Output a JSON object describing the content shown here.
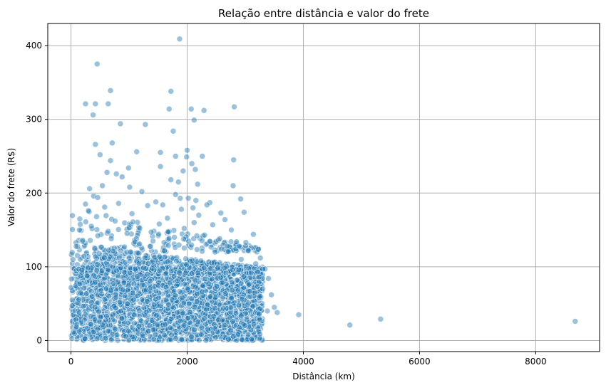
{
  "chart_data": {
    "type": "scatter",
    "title": "Relação entre distância e valor do frete",
    "xlabel": "Distância (km)",
    "ylabel": "Valor do frete (R$)",
    "xlim": [
      -400,
      9100
    ],
    "ylim": [
      -15,
      430
    ],
    "xticks": [
      0,
      2000,
      4000,
      6000,
      8000
    ],
    "xtick_labels": [
      "0",
      "2000",
      "4000",
      "6000",
      "8000"
    ],
    "yticks": [
      0,
      100,
      200,
      300,
      400
    ],
    "ytick_labels": [
      "0",
      "100",
      "200",
      "300",
      "400"
    ],
    "grid": true,
    "color": "#1f77b4",
    "points": [
      {
        "x": 1870,
        "y": 409
      },
      {
        "x": 450,
        "y": 375
      },
      {
        "x": 680,
        "y": 339
      },
      {
        "x": 1720,
        "y": 338
      },
      {
        "x": 250,
        "y": 321
      },
      {
        "x": 420,
        "y": 321
      },
      {
        "x": 640,
        "y": 321
      },
      {
        "x": 2810,
        "y": 317
      },
      {
        "x": 1690,
        "y": 314
      },
      {
        "x": 2070,
        "y": 314
      },
      {
        "x": 2290,
        "y": 312
      },
      {
        "x": 380,
        "y": 306
      },
      {
        "x": 2120,
        "y": 299
      },
      {
        "x": 850,
        "y": 294
      },
      {
        "x": 1280,
        "y": 293
      },
      {
        "x": 1760,
        "y": 284
      },
      {
        "x": 710,
        "y": 268
      },
      {
        "x": 420,
        "y": 266
      },
      {
        "x": 2000,
        "y": 258
      },
      {
        "x": 1130,
        "y": 256
      },
      {
        "x": 1540,
        "y": 255
      },
      {
        "x": 500,
        "y": 252
      },
      {
        "x": 1800,
        "y": 250
      },
      {
        "x": 2260,
        "y": 250
      },
      {
        "x": 1990,
        "y": 249
      },
      {
        "x": 2800,
        "y": 245
      },
      {
        "x": 680,
        "y": 244
      },
      {
        "x": 2080,
        "y": 240
      },
      {
        "x": 1540,
        "y": 236
      },
      {
        "x": 990,
        "y": 234
      },
      {
        "x": 2140,
        "y": 232
      },
      {
        "x": 1930,
        "y": 230
      },
      {
        "x": 620,
        "y": 228
      },
      {
        "x": 780,
        "y": 226
      },
      {
        "x": 880,
        "y": 222
      },
      {
        "x": 1720,
        "y": 218
      },
      {
        "x": 1850,
        "y": 215
      },
      {
        "x": 2180,
        "y": 212
      },
      {
        "x": 540,
        "y": 210
      },
      {
        "x": 2790,
        "y": 210
      },
      {
        "x": 1010,
        "y": 208
      },
      {
        "x": 320,
        "y": 206
      },
      {
        "x": 1220,
        "y": 202
      },
      {
        "x": 1800,
        "y": 198
      },
      {
        "x": 390,
        "y": 196
      },
      {
        "x": 460,
        "y": 194
      },
      {
        "x": 1880,
        "y": 193
      },
      {
        "x": 2020,
        "y": 193
      },
      {
        "x": 2920,
        "y": 192
      },
      {
        "x": 2150,
        "y": 190
      },
      {
        "x": 1460,
        "y": 188
      },
      {
        "x": 2390,
        "y": 187
      },
      {
        "x": 820,
        "y": 186
      },
      {
        "x": 250,
        "y": 185
      },
      {
        "x": 1580,
        "y": 184
      },
      {
        "x": 2340,
        "y": 184
      },
      {
        "x": 1320,
        "y": 183
      },
      {
        "x": 580,
        "y": 181
      },
      {
        "x": 2100,
        "y": 180
      },
      {
        "x": 1900,
        "y": 178
      },
      {
        "x": 300,
        "y": 176
      },
      {
        "x": 2980,
        "y": 174
      },
      {
        "x": 2580,
        "y": 173
      },
      {
        "x": 1050,
        "y": 172
      },
      {
        "x": 2200,
        "y": 170
      },
      {
        "x": 440,
        "y": 168
      },
      {
        "x": 1660,
        "y": 166
      },
      {
        "x": 2650,
        "y": 164
      },
      {
        "x": 760,
        "y": 162
      },
      {
        "x": 2120,
        "y": 160
      },
      {
        "x": 1520,
        "y": 158
      },
      {
        "x": 2440,
        "y": 157
      },
      {
        "x": 350,
        "y": 155
      },
      {
        "x": 1000,
        "y": 153
      },
      {
        "x": 1950,
        "y": 152
      },
      {
        "x": 2760,
        "y": 150
      },
      {
        "x": 640,
        "y": 148
      },
      {
        "x": 1380,
        "y": 147
      },
      {
        "x": 3140,
        "y": 144
      },
      {
        "x": 2300,
        "y": 143
      },
      {
        "x": 1780,
        "y": 140
      },
      {
        "x": 2560,
        "y": 138
      },
      {
        "x": 200,
        "y": 136
      },
      {
        "x": 2850,
        "y": 134
      },
      {
        "x": 3010,
        "y": 133
      },
      {
        "x": 1180,
        "y": 131
      },
      {
        "x": 2690,
        "y": 128
      },
      {
        "x": 920,
        "y": 127
      },
      {
        "x": 3050,
        "y": 122
      },
      {
        "x": 2480,
        "y": 120
      },
      {
        "x": 3260,
        "y": 112
      },
      {
        "x": 2930,
        "y": 110
      },
      {
        "x": 3180,
        "y": 104
      },
      {
        "x": 3340,
        "y": 97
      },
      {
        "x": 3100,
        "y": 92
      },
      {
        "x": 3400,
        "y": 84
      },
      {
        "x": 3300,
        "y": 70
      },
      {
        "x": 3450,
        "y": 62
      },
      {
        "x": 3500,
        "y": 45
      },
      {
        "x": 3380,
        "y": 40
      },
      {
        "x": 3550,
        "y": 38
      },
      {
        "x": 3250,
        "y": 28
      },
      {
        "x": 3150,
        "y": 22
      },
      {
        "x": 2900,
        "y": 18
      },
      {
        "x": 2750,
        "y": 14
      },
      {
        "x": 3050,
        "y": 8
      },
      {
        "x": 3920,
        "y": 35
      },
      {
        "x": 4800,
        "y": 21
      },
      {
        "x": 5330,
        "y": 29
      },
      {
        "x": 8680,
        "y": 26
      }
    ]
  }
}
